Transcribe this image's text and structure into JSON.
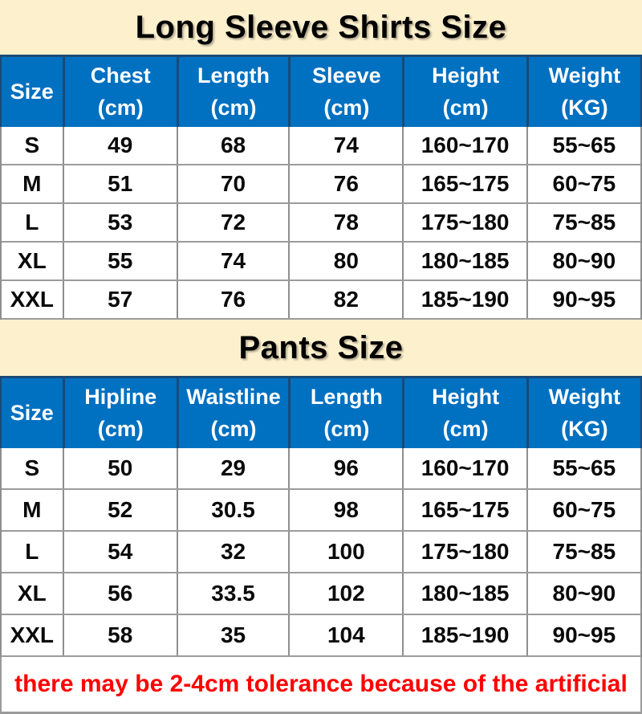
{
  "colors": {
    "header_blue": "#0070c0",
    "banner_cream": "#fdf0cd",
    "divider_navy": "#1a4a78",
    "grid_gray": "#909090",
    "note_red": "#ff0000"
  },
  "tables": [
    {
      "id": "long-sleeve-shirts-size-table",
      "title": "Long Sleeve Shirts Size",
      "columns": [
        {
          "label": "Size",
          "unit": ""
        },
        {
          "label": "Chest",
          "unit": "(cm)"
        },
        {
          "label": "Length",
          "unit": "(cm)"
        },
        {
          "label": "Sleeve",
          "unit": "(cm)"
        },
        {
          "label": "Height",
          "unit": "(cm)"
        },
        {
          "label": "Weight",
          "unit": "(KG)"
        }
      ],
      "rows": [
        [
          "S",
          "49",
          "68",
          "74",
          "160~170",
          "55~65"
        ],
        [
          "M",
          "51",
          "70",
          "76",
          "165~175",
          "60~75"
        ],
        [
          "L",
          "53",
          "72",
          "78",
          "175~180",
          "75~85"
        ],
        [
          "XL",
          "55",
          "74",
          "80",
          "180~185",
          "80~90"
        ],
        [
          "XXL",
          "57",
          "76",
          "82",
          "185~190",
          "90~95"
        ]
      ]
    },
    {
      "id": "pants-size-table",
      "title": "Pants Size",
      "columns": [
        {
          "label": "Size",
          "unit": ""
        },
        {
          "label": "Hipline",
          "unit": "(cm)"
        },
        {
          "label": "Waistline",
          "unit": "(cm)"
        },
        {
          "label": "Length",
          "unit": "(cm)"
        },
        {
          "label": "Height",
          "unit": "(cm)"
        },
        {
          "label": "Weight",
          "unit": "(KG)"
        }
      ],
      "rows": [
        [
          "S",
          "50",
          "29",
          "96",
          "160~170",
          "55~65"
        ],
        [
          "M",
          "52",
          "30.5",
          "98",
          "165~175",
          "60~75"
        ],
        [
          "L",
          "54",
          "32",
          "100",
          "175~180",
          "75~85"
        ],
        [
          "XL",
          "56",
          "33.5",
          "102",
          "180~185",
          "80~90"
        ],
        [
          "XXL",
          "58",
          "35",
          "104",
          "185~190",
          "90~95"
        ]
      ]
    }
  ],
  "note": "there may be 2-4cm tolerance because of the artificial"
}
